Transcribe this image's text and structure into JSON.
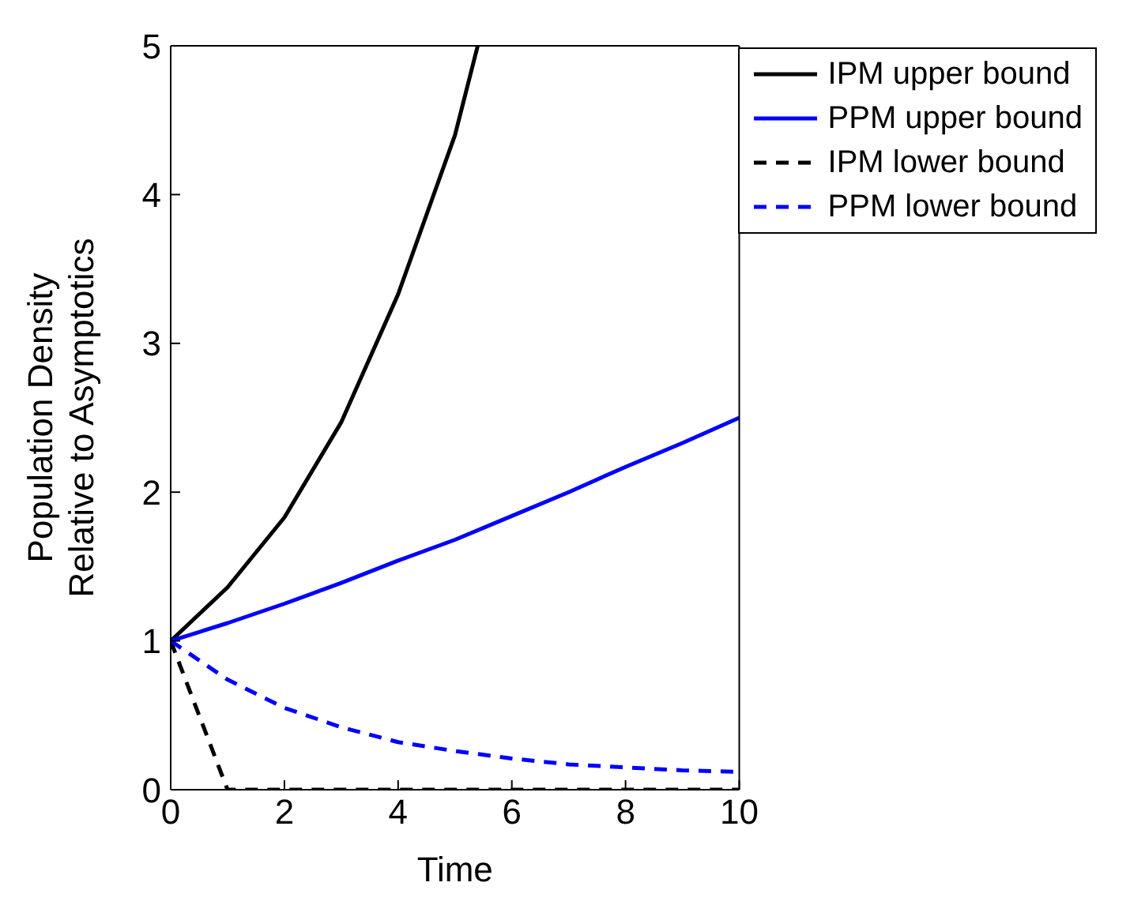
{
  "chart_data": {
    "type": "line",
    "xlabel": "Time",
    "ylabel": "Population Density\nRelative to Asymptotics",
    "xlim": [
      0,
      10
    ],
    "ylim": [
      0,
      5
    ],
    "xticks": [
      0,
      2,
      4,
      6,
      8,
      10
    ],
    "yticks": [
      0,
      1,
      2,
      3,
      4,
      5
    ],
    "grid": false,
    "legend": "top right",
    "marker": "none",
    "x": [
      0,
      1,
      2,
      3,
      4,
      5,
      6,
      7,
      8,
      9,
      10
    ],
    "series": [
      {
        "name": "IPM upper bound",
        "color": "#000000",
        "line_style": "solid",
        "x": [
          0,
          1,
          2,
          3,
          4,
          5,
          5.4
        ],
        "values": [
          1,
          1.36,
          1.83,
          2.47,
          3.33,
          4.4,
          5
        ]
      },
      {
        "name": "PPM upper bound",
        "color": "#0000ff",
        "line_style": "solid",
        "values": [
          1,
          1.12,
          1.25,
          1.39,
          1.54,
          1.68,
          1.84,
          2.0,
          2.17,
          2.33,
          2.5
        ]
      },
      {
        "name": "IPM lower bound",
        "color": "#000000",
        "line_style": "dashed",
        "values": [
          1,
          0,
          0,
          0,
          0,
          0,
          0,
          0,
          0,
          0,
          0
        ]
      },
      {
        "name": "PPM lower bound",
        "color": "#0000ff",
        "line_style": "dashed",
        "values": [
          1,
          0.74,
          0.55,
          0.42,
          0.32,
          0.26,
          0.21,
          0.17,
          0.15,
          0.13,
          0.12
        ]
      }
    ]
  }
}
